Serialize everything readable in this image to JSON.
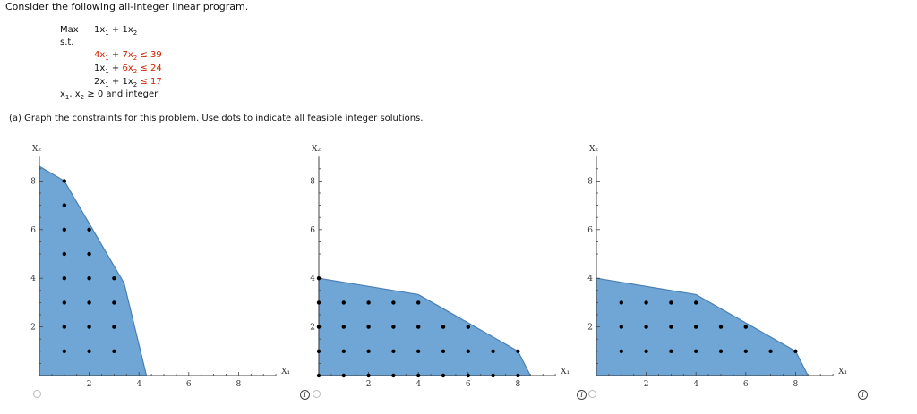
{
  "intro": "Consider the following all-integer linear program.",
  "problem": {
    "max_label": "Max",
    "objective": [
      {
        "t": "1x"
      },
      {
        "sub": "1"
      },
      {
        "t": " + 1x"
      },
      {
        "sub": "2"
      }
    ],
    "st_label": "s.t.",
    "constraints": [
      [
        {
          "t": "4x",
          "red": true
        },
        {
          "sub": "1",
          "red": true
        },
        {
          "t": " + ",
          "red": false
        },
        {
          "t": "7x",
          "red": true
        },
        {
          "sub": "2",
          "red": true
        },
        {
          "t": " ≤ 39",
          "red": true
        }
      ],
      [
        {
          "t": "1x"
        },
        {
          "sub": "1"
        },
        {
          "t": " + "
        },
        {
          "t": "6x",
          "red": true
        },
        {
          "sub": "2",
          "red": true
        },
        {
          "t": " ≤ 24",
          "red": true
        }
      ],
      [
        {
          "t": "2x"
        },
        {
          "sub": "1"
        },
        {
          "t": " + "
        },
        {
          "t": "1x"
        },
        {
          "sub": "2"
        },
        {
          "t": " ≤ 17",
          "red": true
        }
      ]
    ],
    "nonneg": [
      {
        "t": "x"
      },
      {
        "sub": "1"
      },
      {
        "t": ", x"
      },
      {
        "sub": "2"
      },
      {
        "t": " ≥ 0 and integer"
      }
    ]
  },
  "part_a": "(a)   Graph the constraints for this problem. Use dots to indicate all feasible integer solutions.",
  "colors": {
    "fill": "#6fa6d6",
    "stroke": "#4a7fb4",
    "dot": "#000000",
    "axis": "#444444"
  },
  "graphs": [
    {
      "name": "option-1",
      "x_label": "X₁",
      "y_label": "X₂",
      "x_ticks": [
        "2",
        "4",
        "6",
        "8"
      ],
      "y_ticks": [
        "2",
        "4",
        "6",
        "8"
      ],
      "x_range": [
        0,
        9.5
      ],
      "y_range": [
        0,
        9
      ],
      "region": [
        [
          0,
          0
        ],
        [
          0,
          8.6
        ],
        [
          1,
          8
        ],
        [
          3.4,
          3.8
        ],
        [
          4.3,
          0
        ]
      ],
      "dots": [
        [
          1,
          8
        ],
        [
          1,
          7
        ],
        [
          1,
          6
        ],
        [
          2,
          6
        ],
        [
          1,
          5
        ],
        [
          2,
          5
        ],
        [
          1,
          4
        ],
        [
          2,
          4
        ],
        [
          3,
          4
        ],
        [
          1,
          3
        ],
        [
          2,
          3
        ],
        [
          3,
          3
        ],
        [
          1,
          2
        ],
        [
          2,
          2
        ],
        [
          3,
          2
        ],
        [
          1,
          1
        ],
        [
          2,
          1
        ],
        [
          3,
          1
        ]
      ]
    },
    {
      "name": "option-2",
      "x_label": "X₁",
      "y_label": "X₂",
      "x_ticks": [
        "2",
        "4",
        "6",
        "8"
      ],
      "y_ticks": [
        "2",
        "4",
        "6",
        "8"
      ],
      "x_range": [
        0,
        9.5
      ],
      "y_range": [
        0,
        9
      ],
      "region": [
        [
          0,
          0
        ],
        [
          0,
          4
        ],
        [
          4,
          3.33
        ],
        [
          8,
          1
        ],
        [
          8.5,
          0
        ]
      ],
      "dots": [
        [
          0,
          4
        ],
        [
          0,
          3
        ],
        [
          1,
          3
        ],
        [
          2,
          3
        ],
        [
          3,
          3
        ],
        [
          4,
          3
        ],
        [
          0,
          2
        ],
        [
          1,
          2
        ],
        [
          2,
          2
        ],
        [
          3,
          2
        ],
        [
          4,
          2
        ],
        [
          5,
          2
        ],
        [
          6,
          2
        ],
        [
          0,
          1
        ],
        [
          1,
          1
        ],
        [
          2,
          1
        ],
        [
          3,
          1
        ],
        [
          4,
          1
        ],
        [
          5,
          1
        ],
        [
          6,
          1
        ],
        [
          7,
          1
        ],
        [
          8,
          1
        ],
        [
          0,
          0
        ],
        [
          1,
          0
        ],
        [
          2,
          0
        ],
        [
          3,
          0
        ],
        [
          4,
          0
        ],
        [
          5,
          0
        ],
        [
          6,
          0
        ],
        [
          7,
          0
        ],
        [
          8,
          0
        ]
      ]
    },
    {
      "name": "option-3",
      "x_label": "X₁",
      "y_label": "X₂",
      "x_ticks": [
        "2",
        "4",
        "6",
        "8"
      ],
      "y_ticks": [
        "2",
        "4",
        "6",
        "8"
      ],
      "x_range": [
        0,
        9.5
      ],
      "y_range": [
        0,
        9
      ],
      "region": [
        [
          0,
          0
        ],
        [
          0,
          4
        ],
        [
          4,
          3.33
        ],
        [
          8,
          1
        ],
        [
          8.5,
          0
        ]
      ],
      "dots": [
        [
          1,
          3
        ],
        [
          2,
          3
        ],
        [
          3,
          3
        ],
        [
          4,
          3
        ],
        [
          1,
          2
        ],
        [
          2,
          2
        ],
        [
          3,
          2
        ],
        [
          4,
          2
        ],
        [
          5,
          2
        ],
        [
          6,
          2
        ],
        [
          1,
          1
        ],
        [
          2,
          1
        ],
        [
          3,
          1
        ],
        [
          4,
          1
        ],
        [
          5,
          1
        ],
        [
          6,
          1
        ],
        [
          7,
          1
        ],
        [
          8,
          1
        ]
      ]
    }
  ]
}
